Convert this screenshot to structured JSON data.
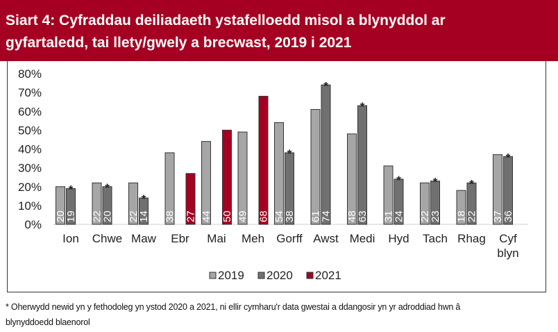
{
  "chart_data": {
    "type": "bar",
    "title": "Siart 4: Cyfraddau deiliadaeth ystafelloedd misol a blynyddol ar gyfartaledd, tai llety/gwely a brecwast, 2019 i 2021",
    "categories": [
      "Ion",
      "Chwe",
      "Maw",
      "Ebr",
      "Mai",
      "Meh",
      "Gorff",
      "Awst",
      "Medi",
      "Hyd",
      "Tach",
      "Rhag",
      "Cyf blyn"
    ],
    "series": [
      {
        "name": "2019",
        "color": "#A6A6A6",
        "values": [
          20,
          22,
          22,
          38,
          44,
          49,
          54,
          61,
          48,
          31,
          22,
          18,
          37
        ]
      },
      {
        "name": "2020",
        "color": "#707070",
        "values": [
          19,
          20,
          14,
          null,
          null,
          null,
          38,
          74,
          63,
          24,
          23,
          22,
          36
        ],
        "asterisk": true
      },
      {
        "name": "2021",
        "color": "#A50021",
        "values": [
          null,
          null,
          null,
          27,
          50,
          68,
          null,
          null,
          null,
          null,
          null,
          null,
          null
        ]
      }
    ],
    "yticks": [
      "0%",
      "10%",
      "20%",
      "30%",
      "40%",
      "50%",
      "60%",
      "70%",
      "80%"
    ],
    "ylim": [
      0,
      80
    ],
    "ylabel": "",
    "xlabel": "",
    "asterisk_mark": "*",
    "legend_placement": "bottom",
    "grid": false
  },
  "title_lines": [
    "Siart 4: Cyfraddau deiliadaeth ystafelloedd misol a blynyddol ar",
    "gyfartaledd, tai llety/gwely a brecwast, 2019 i 2021"
  ],
  "footnote_lines": [
    "* Oherwydd newid yn y fethodoleg yn ystod 2020 a 2021, ni ellir cymharu'r data gwestai a ddangosir yn yr adroddiad hwn â",
    "blynyddoedd blaenorol"
  ]
}
